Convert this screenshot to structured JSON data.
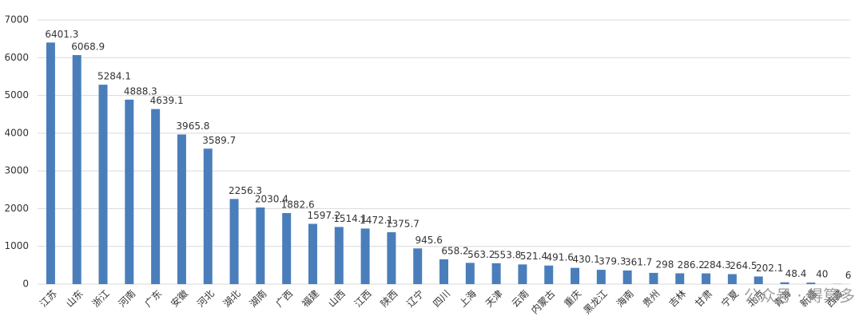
{
  "chart_data": {
    "type": "bar",
    "categories": [
      "江苏",
      "山东",
      "浙江",
      "河南",
      "广东",
      "安徽",
      "河北",
      "湖北",
      "湖南",
      "广西",
      "福建",
      "山西",
      "江西",
      "陕西",
      "辽宁",
      "四川",
      "上海",
      "天津",
      "云南",
      "内蒙古",
      "重庆",
      "黑龙江",
      "海南",
      "贵州",
      "吉林",
      "甘肃",
      "宁夏",
      "北京",
      "青海",
      "新疆",
      "西藏"
    ],
    "values": [
      6401.3,
      6068.9,
      5284.1,
      4888.3,
      4639.1,
      3965.8,
      3589.7,
      2256.3,
      2030.4,
      1882.6,
      1597.2,
      1514.1,
      1472.1,
      1375.7,
      945.6,
      658.2,
      563.2,
      553.8,
      521.4,
      491.6,
      430.1,
      379.3,
      361.7,
      298,
      286.2,
      284.3,
      264.5,
      202.1,
      48.4,
      40,
      6
    ],
    "color": "#4a7ebb",
    "ylim": [
      0,
      7000
    ],
    "yticks": [
      0,
      1000,
      2000,
      3000,
      4000,
      5000,
      6000,
      7000
    ],
    "grid": true,
    "annotation": "公众号 · 得算多"
  }
}
